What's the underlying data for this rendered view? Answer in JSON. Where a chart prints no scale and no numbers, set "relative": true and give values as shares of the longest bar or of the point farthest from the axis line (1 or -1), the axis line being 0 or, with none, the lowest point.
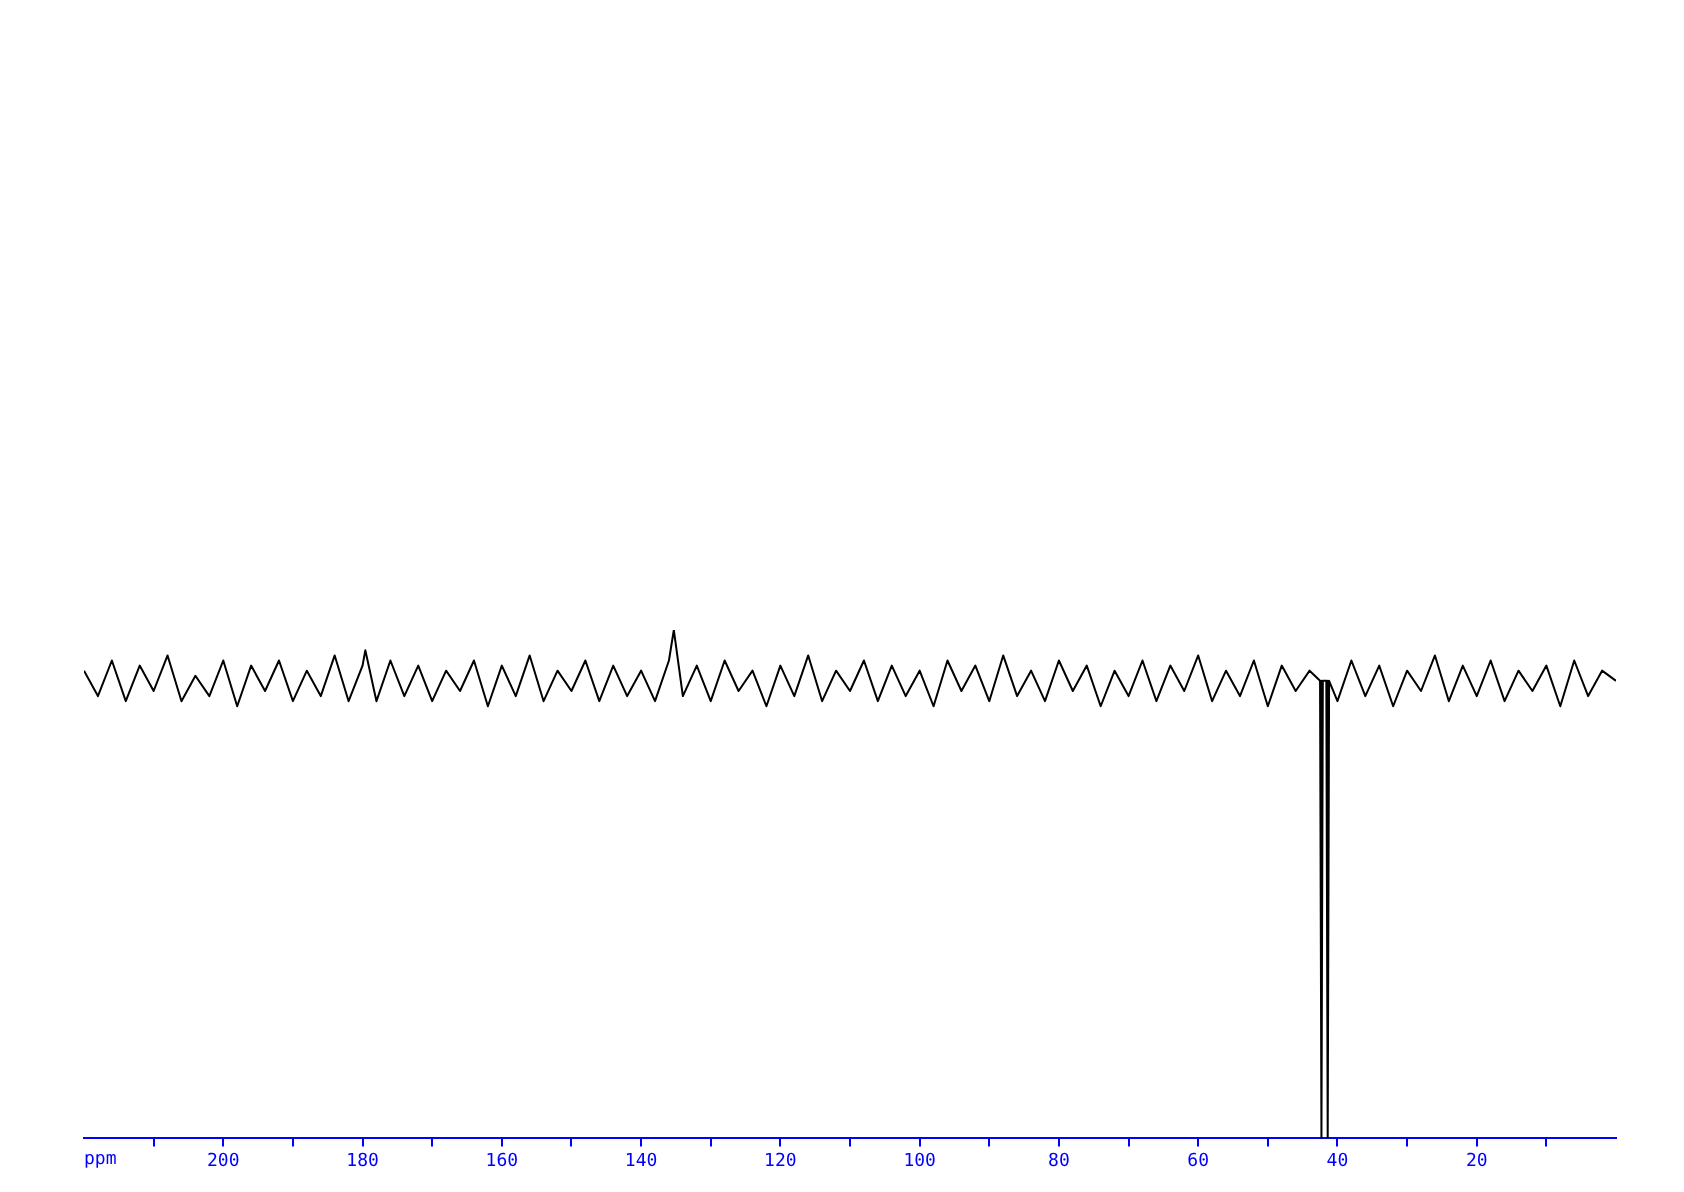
{
  "chart_data": {
    "type": "line",
    "relative": true,
    "xlabel": "ppm",
    "grid": false,
    "legend": false,
    "marker": "none",
    "xlim": [
      220,
      0
    ],
    "xticks": [
      {
        "value": 210,
        "label": null
      },
      200,
      {
        "value": 190,
        "label": null
      },
      180,
      {
        "value": 170,
        "label": null
      },
      160,
      {
        "value": 150,
        "label": null
      },
      140,
      {
        "value": 130,
        "label": null
      },
      120,
      {
        "value": 110,
        "label": null
      },
      100,
      {
        "value": 90,
        "label": null
      },
      80,
      {
        "value": 70,
        "label": null
      },
      60,
      {
        "value": 50,
        "label": null
      },
      40,
      {
        "value": 30,
        "label": null
      },
      20,
      {
        "value": 10,
        "label": null
      }
    ],
    "series": [
      {
        "color": "#000000",
        "x": [
          220,
          218,
          216,
          214,
          212,
          210,
          208,
          206,
          204,
          202,
          200,
          198,
          196,
          194,
          192,
          190,
          188,
          186,
          184,
          182,
          180,
          179.6,
          178,
          176,
          174,
          172,
          170,
          168,
          166,
          164,
          162,
          160,
          158,
          156,
          154,
          152,
          150,
          148,
          146,
          144,
          142,
          140,
          138,
          136,
          135.3,
          134,
          132,
          130,
          128,
          126,
          124,
          122,
          120,
          118,
          116,
          114,
          112,
          110,
          108,
          106,
          104,
          102,
          100,
          98,
          96,
          94,
          92,
          90,
          88,
          86,
          84,
          82,
          80,
          78,
          76,
          74,
          72,
          70,
          68,
          66,
          64,
          62,
          60,
          58,
          56,
          54,
          52,
          50,
          48,
          46,
          44,
          42.5,
          42.3,
          42.1,
          41.6,
          41.4,
          41.2,
          40,
          38,
          36,
          34,
          32,
          30,
          28,
          26,
          24,
          22,
          20,
          18,
          16,
          14,
          12,
          10,
          8,
          6,
          4,
          2,
          0
        ],
        "values": [
          0.92,
          0.87,
          0.94,
          0.86,
          0.93,
          0.88,
          0.95,
          0.86,
          0.91,
          0.87,
          0.94,
          0.85,
          0.93,
          0.88,
          0.94,
          0.86,
          0.92,
          0.87,
          0.95,
          0.86,
          0.93,
          0.96,
          0.86,
          0.94,
          0.87,
          0.93,
          0.86,
          0.92,
          0.88,
          0.94,
          0.85,
          0.93,
          0.87,
          0.95,
          0.86,
          0.92,
          0.88,
          0.94,
          0.86,
          0.93,
          0.87,
          0.92,
          0.86,
          0.94,
          1,
          0.87,
          0.93,
          0.86,
          0.94,
          0.88,
          0.92,
          0.85,
          0.93,
          0.87,
          0.95,
          0.86,
          0.92,
          0.88,
          0.94,
          0.86,
          0.93,
          0.87,
          0.92,
          0.85,
          0.94,
          0.88,
          0.93,
          0.86,
          0.95,
          0.87,
          0.92,
          0.86,
          0.94,
          0.88,
          0.93,
          0.85,
          0.92,
          0.87,
          0.94,
          0.86,
          0.93,
          0.88,
          0.95,
          0.86,
          0.92,
          0.87,
          0.94,
          0.85,
          0.93,
          0.88,
          0.92,
          0.9,
          0,
          0.9,
          0.9,
          0,
          0.9,
          0.86,
          0.94,
          0.87,
          0.93,
          0.85,
          0.92,
          0.88,
          0.95,
          0.86,
          0.93,
          0.87,
          0.94,
          0.86,
          0.92,
          0.88,
          0.93,
          0.85,
          0.94,
          0.87,
          0.92,
          0.9
        ]
      }
    ]
  }
}
